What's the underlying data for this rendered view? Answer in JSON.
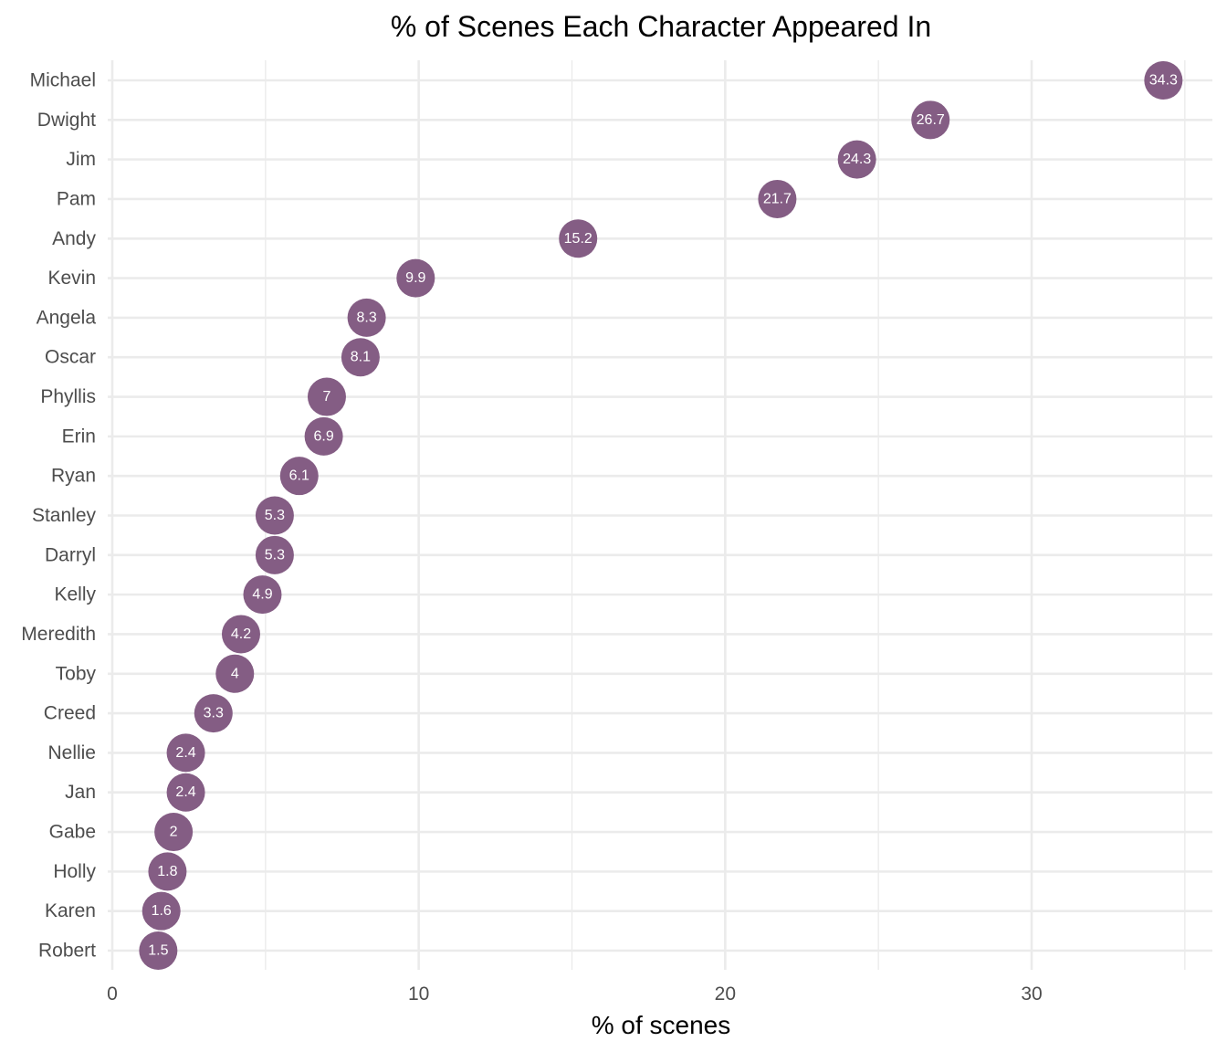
{
  "chart_data": {
    "type": "scatter",
    "title": "% of Scenes Each Character Appeared In",
    "xlabel": "% of scenes",
    "ylabel": "",
    "xlim": [
      0,
      35.5
    ],
    "x_ticks": [
      0,
      10,
      20,
      30
    ],
    "x_tick_labels": [
      "0",
      "10",
      "20",
      "30"
    ],
    "x_minor_ticks": [
      5,
      15,
      25,
      35
    ],
    "grid": true,
    "legend": "none",
    "point_color": "#845d84",
    "points": [
      {
        "category": "Michael",
        "value": 34.3,
        "label": "34.3"
      },
      {
        "category": "Dwight",
        "value": 26.7,
        "label": "26.7"
      },
      {
        "category": "Jim",
        "value": 24.3,
        "label": "24.3"
      },
      {
        "category": "Pam",
        "value": 21.7,
        "label": "21.7"
      },
      {
        "category": "Andy",
        "value": 15.2,
        "label": "15.2"
      },
      {
        "category": "Kevin",
        "value": 9.9,
        "label": "9.9"
      },
      {
        "category": "Angela",
        "value": 8.3,
        "label": "8.3"
      },
      {
        "category": "Oscar",
        "value": 8.1,
        "label": "8.1"
      },
      {
        "category": "Phyllis",
        "value": 7.0,
        "label": "7"
      },
      {
        "category": "Erin",
        "value": 6.9,
        "label": "6.9"
      },
      {
        "category": "Ryan",
        "value": 6.1,
        "label": "6.1"
      },
      {
        "category": "Stanley",
        "value": 5.3,
        "label": "5.3"
      },
      {
        "category": "Darryl",
        "value": 5.3,
        "label": "5.3"
      },
      {
        "category": "Kelly",
        "value": 4.9,
        "label": "4.9"
      },
      {
        "category": "Meredith",
        "value": 4.2,
        "label": "4.2"
      },
      {
        "category": "Toby",
        "value": 4.0,
        "label": "4"
      },
      {
        "category": "Creed",
        "value": 3.3,
        "label": "3.3"
      },
      {
        "category": "Nellie",
        "value": 2.4,
        "label": "2.4"
      },
      {
        "category": "Jan",
        "value": 2.4,
        "label": "2.4"
      },
      {
        "category": "Gabe",
        "value": 2.0,
        "label": "2"
      },
      {
        "category": "Holly",
        "value": 1.8,
        "label": "1.8"
      },
      {
        "category": "Karen",
        "value": 1.6,
        "label": "1.6"
      },
      {
        "category": "Robert",
        "value": 1.5,
        "label": "1.5"
      }
    ]
  }
}
